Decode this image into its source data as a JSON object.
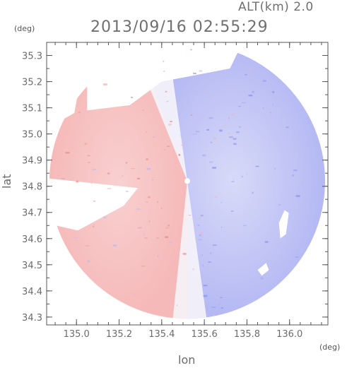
{
  "header": {
    "altitude_label": "ALT(km) 2.0",
    "timestamp": "2013/09/16 02:55:29",
    "y_unit": "(deg)",
    "x_unit": "(deg)"
  },
  "chart_data": {
    "type": "heatmap",
    "title": "2013/09/16 02:55:29",
    "xlabel": "lon",
    "ylabel": "lat",
    "xlim": [
      134.86,
      136.18
    ],
    "ylim": [
      34.27,
      35.35
    ],
    "x_ticks": [
      "135.0",
      "135.2",
      "135.4",
      "135.6",
      "135.8",
      "136.0"
    ],
    "y_ticks": [
      "34.3",
      "34.4",
      "34.5",
      "34.6",
      "34.7",
      "34.8",
      "34.9",
      "35.0",
      "35.1",
      "35.2",
      "35.3"
    ],
    "grid": false,
    "radar_center": {
      "lon": 135.52,
      "lat": 34.82
    },
    "colors": {
      "positive": "#f2a3a3",
      "negative": "#a3a7f2",
      "zero": "#f4f4fb",
      "frame": "#555555"
    }
  }
}
